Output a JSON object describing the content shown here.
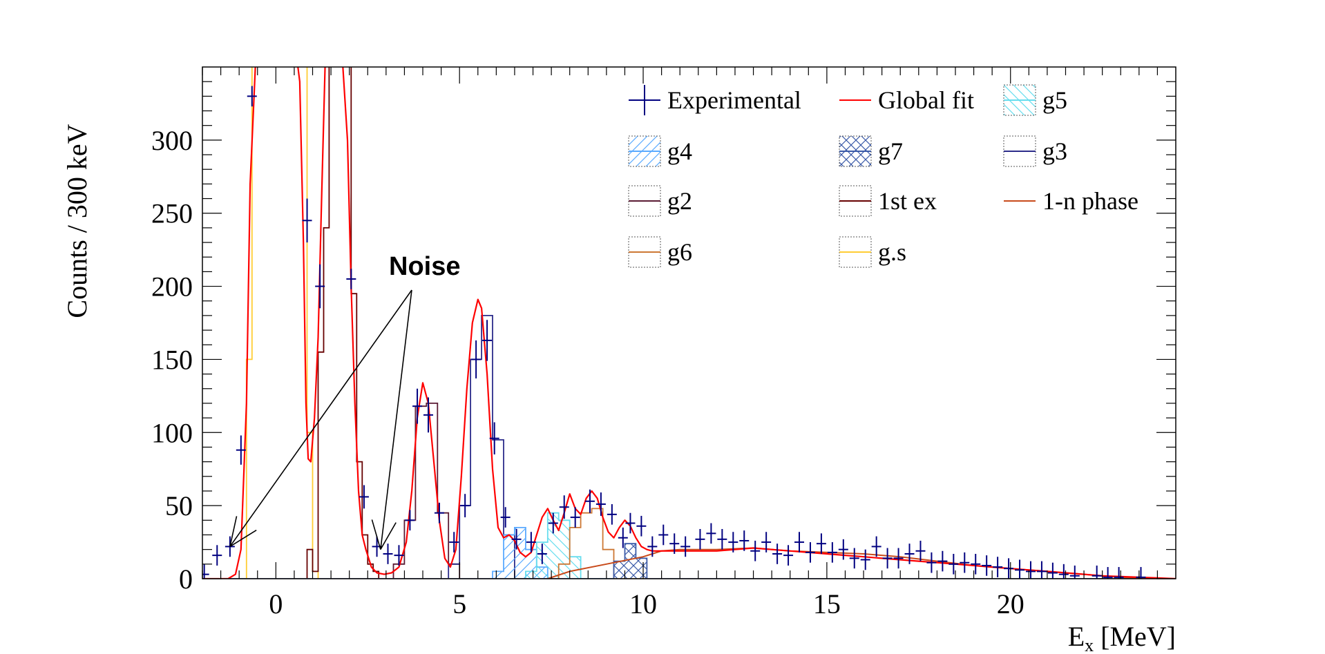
{
  "chart_data": {
    "type": "histogram",
    "title": "",
    "xlabel": "E",
    "xlabel_sub": "x",
    "xlabel_unit": " [MeV]",
    "ylabel": "Counts / 300 keV",
    "xlim": [
      -2,
      24.5
    ],
    "ylim": [
      0,
      350
    ],
    "bin_width_mev": 0.3,
    "xticks": [
      0,
      5,
      10,
      15,
      20
    ],
    "yticks": [
      0,
      50,
      100,
      150,
      200,
      250,
      300
    ],
    "grid": false,
    "legend_position": "top-right",
    "annotation": {
      "text": "Noise",
      "points_to_x": [
        -1.25,
        2.85
      ],
      "points_to_y": [
        22,
        20
      ]
    },
    "experimental": {
      "name": "Experimental",
      "color": "#000080",
      "points": [
        [
          -1.95,
          3,
          0
        ],
        [
          -1.6,
          16,
          5
        ],
        [
          -1.25,
          22,
          6
        ],
        [
          -0.95,
          88,
          10
        ],
        [
          -0.65,
          330,
          0
        ],
        [
          0.85,
          245,
          15
        ],
        [
          1.2,
          200,
          15
        ],
        [
          2.05,
          205,
          0
        ],
        [
          2.4,
          56,
          8
        ],
        [
          2.75,
          22,
          6
        ],
        [
          3.05,
          17,
          5
        ],
        [
          3.35,
          16,
          5
        ],
        [
          3.65,
          40,
          7
        ],
        [
          3.85,
          118,
          12
        ],
        [
          4.15,
          112,
          12
        ],
        [
          4.45,
          45,
          7
        ],
        [
          4.85,
          25,
          6
        ],
        [
          5.15,
          50,
          8
        ],
        [
          5.45,
          150,
          13
        ],
        [
          5.75,
          163,
          14
        ],
        [
          5.95,
          96,
          11
        ],
        [
          6.25,
          42,
          7
        ],
        [
          6.55,
          27,
          6
        ],
        [
          6.95,
          25,
          6
        ],
        [
          7.25,
          17,
          5
        ],
        [
          7.55,
          38,
          7
        ],
        [
          7.85,
          49,
          8
        ],
        [
          8.15,
          42,
          7
        ],
        [
          8.55,
          53,
          8
        ],
        [
          8.85,
          51,
          8
        ],
        [
          9.15,
          44,
          7
        ],
        [
          9.45,
          28,
          6
        ],
        [
          9.65,
          38,
          7
        ],
        [
          9.95,
          36,
          7
        ],
        [
          10.25,
          22,
          5
        ],
        [
          10.55,
          30,
          6
        ],
        [
          10.85,
          24,
          5
        ],
        [
          11.15,
          22,
          5
        ],
        [
          11.55,
          27,
          6
        ],
        [
          11.85,
          31,
          6
        ],
        [
          12.15,
          27,
          6
        ],
        [
          12.45,
          25,
          5
        ],
        [
          12.75,
          26,
          6
        ],
        [
          13.05,
          19,
          5
        ],
        [
          13.35,
          25,
          5
        ],
        [
          13.65,
          17,
          5
        ],
        [
          13.95,
          16,
          4
        ],
        [
          14.25,
          25,
          5
        ],
        [
          14.55,
          18,
          5
        ],
        [
          14.85,
          24,
          5
        ],
        [
          15.15,
          18,
          5
        ],
        [
          15.45,
          20,
          5
        ],
        [
          15.75,
          14,
          4
        ],
        [
          16.05,
          13,
          4
        ],
        [
          16.35,
          22,
          5
        ],
        [
          16.65,
          14,
          4
        ],
        [
          16.95,
          14,
          4
        ],
        [
          17.25,
          17,
          5
        ],
        [
          17.55,
          19,
          5
        ],
        [
          17.85,
          11,
          4
        ],
        [
          18.15,
          12,
          4
        ],
        [
          18.45,
          10,
          3
        ],
        [
          18.75,
          11,
          3
        ],
        [
          19.05,
          10,
          3
        ],
        [
          19.35,
          9,
          3
        ],
        [
          19.65,
          8,
          3
        ],
        [
          19.95,
          7,
          3
        ],
        [
          20.25,
          6,
          3
        ],
        [
          20.55,
          5,
          2
        ],
        [
          20.85,
          5,
          2
        ],
        [
          21.15,
          4,
          2
        ],
        [
          21.45,
          3,
          2
        ],
        [
          21.75,
          2,
          2
        ],
        [
          22.35,
          2,
          1
        ],
        [
          22.65,
          1,
          1
        ],
        [
          22.95,
          1,
          1
        ],
        [
          23.55,
          1,
          1
        ]
      ]
    },
    "global_fit": {
      "name": "Global fit",
      "color": "#ff0000",
      "x": [
        -2,
        -1.6,
        -1.3,
        -1.1,
        -0.95,
        -0.8,
        -0.7,
        -0.55,
        -0.4,
        -0.2,
        0,
        0.2,
        0.4,
        0.55,
        0.65,
        0.75,
        0.82,
        0.88,
        0.95,
        1.05,
        1.15,
        1.25,
        1.35,
        1.5,
        1.65,
        1.8,
        1.95,
        2.05,
        2.15,
        2.25,
        2.35,
        2.45,
        2.6,
        2.75,
        2.95,
        3.15,
        3.35,
        3.55,
        3.7,
        3.85,
        4.0,
        4.15,
        4.3,
        4.45,
        4.6,
        4.75,
        4.9,
        5.05,
        5.2,
        5.35,
        5.5,
        5.6,
        5.75,
        5.9,
        6.05,
        6.2,
        6.35,
        6.5,
        6.65,
        6.8,
        6.95,
        7.1,
        7.25,
        7.4,
        7.55,
        7.7,
        7.85,
        8.0,
        8.15,
        8.3,
        8.45,
        8.6,
        8.75,
        8.9,
        9.05,
        9.2,
        9.35,
        9.5,
        9.65,
        9.8,
        9.95,
        10.1,
        10.25,
        10.4,
        10.6,
        11,
        11.5,
        12,
        12.5,
        13,
        13.5,
        14,
        14.5,
        15,
        15.5,
        16,
        16.5,
        17,
        17.5,
        18,
        18.5,
        19,
        19.5,
        20,
        20.5,
        21,
        21.5,
        22,
        22.5,
        23,
        23.5,
        24,
        24.5
      ],
      "y": [
        0,
        0,
        0,
        3,
        20,
        120,
        270,
        355,
        360,
        360,
        360,
        360,
        360,
        360,
        340,
        230,
        120,
        82,
        80,
        110,
        165,
        265,
        360,
        360,
        360,
        360,
        300,
        200,
        120,
        60,
        30,
        20,
        8,
        4,
        3,
        4,
        8,
        25,
        60,
        110,
        134,
        120,
        80,
        40,
        14,
        8,
        20,
        70,
        130,
        175,
        191,
        185,
        140,
        75,
        35,
        28,
        30,
        26,
        18,
        15,
        18,
        30,
        42,
        48,
        40,
        33,
        45,
        58,
        48,
        44,
        55,
        60,
        55,
        42,
        32,
        28,
        35,
        40,
        36,
        28,
        22,
        20,
        19,
        19,
        19,
        19,
        19,
        19,
        20,
        21,
        20,
        19,
        18,
        17,
        16,
        15,
        14,
        13,
        12,
        11,
        10,
        9,
        8,
        7,
        6,
        5,
        4,
        3,
        2,
        1.5,
        1,
        0.5,
        0
      ]
    },
    "components": [
      {
        "name": "g.s",
        "color": "#ffcc33",
        "style": "outline",
        "x_edges": [
          -0.8,
          -0.65,
          -0.5,
          -0.35,
          0.7,
          0.85,
          1.0,
          1.15
        ],
        "values": [
          150,
          360,
          360,
          360,
          360,
          100,
          5,
          0
        ],
        "x_start": -2,
        "x_end": 24.5
      },
      {
        "name": "1st ex",
        "color": "#660000",
        "style": "outline",
        "x_edges": [
          0.7,
          0.85,
          1.0,
          1.15,
          1.3,
          1.45,
          1.6,
          1.75,
          1.9,
          2.05,
          2.2,
          2.35,
          2.5,
          2.65,
          2.8
        ],
        "values": [
          0,
          20,
          5,
          155,
          240,
          360,
          360,
          360,
          360,
          195,
          80,
          30,
          10,
          5,
          0
        ],
        "x_start": -2,
        "x_end": 24.5
      },
      {
        "name": "g2",
        "color": "#5a1a33",
        "style": "outline",
        "x_edges": [
          2.9,
          3.2,
          3.5,
          3.8,
          4.1,
          4.4,
          4.7,
          5.0
        ],
        "values": [
          0,
          10,
          40,
          118,
          120,
          45,
          10,
          0
        ],
        "x_start": -2,
        "x_end": 24.5
      },
      {
        "name": "g3",
        "color": "#2b2b8a",
        "style": "outline",
        "x_edges": [
          4.4,
          4.7,
          5.0,
          5.3,
          5.6,
          5.9,
          6.2,
          6.5
        ],
        "values": [
          0,
          10,
          50,
          150,
          180,
          95,
          30,
          5
        ],
        "x_start": -2,
        "x_end": 24.5
      },
      {
        "name": "g4",
        "color": "#5aaaff",
        "style": "hatch-diag",
        "x_edges": [
          5.9,
          6.2,
          6.5,
          6.8,
          7.1,
          7.4
        ],
        "values": [
          5,
          30,
          35,
          20,
          8,
          0
        ],
        "x_start": -2,
        "x_end": 24.5
      },
      {
        "name": "g5",
        "color": "#66ddee",
        "style": "hatch-anti",
        "x_edges": [
          6.8,
          7.1,
          7.4,
          7.7,
          8.0,
          8.3
        ],
        "values": [
          5,
          25,
          45,
          40,
          15,
          0
        ],
        "x_start": -2,
        "x_end": 24.5
      },
      {
        "name": "g6",
        "color": "#cc7733",
        "style": "outline",
        "x_edges": [
          7.7,
          8.0,
          8.3,
          8.6,
          8.9,
          9.2
        ],
        "values": [
          10,
          35,
          45,
          48,
          20,
          0
        ],
        "x_start": -2,
        "x_end": 24.5
      },
      {
        "name": "g7",
        "color": "#3a5aa8",
        "style": "hatch-cross",
        "x_edges": [
          9.2,
          9.5,
          9.8,
          10.1
        ],
        "values": [
          12,
          24,
          14,
          0
        ],
        "x_start": -2,
        "x_end": 24.5
      },
      {
        "name": "1-n phase",
        "color": "#c84a1a",
        "style": "line",
        "x": [
          7.4,
          8.0,
          9.0,
          10.0,
          10.5,
          11,
          12,
          13,
          14,
          15,
          16,
          17,
          18,
          19,
          20,
          21,
          22,
          23,
          24.5
        ],
        "y": [
          0,
          5,
          10,
          15,
          19,
          20,
          20,
          21,
          19,
          18,
          17,
          15,
          12,
          9,
          7,
          5,
          3,
          1,
          0
        ]
      }
    ],
    "legend": [
      {
        "label": "Experimental",
        "kind": "errorbar",
        "color": "#000080"
      },
      {
        "label": "Global fit",
        "kind": "line",
        "color": "#ff0000"
      },
      {
        "label": "g5",
        "kind": "hatch-anti",
        "color": "#66ddee"
      },
      {
        "label": "g4",
        "kind": "hatch-diag",
        "color": "#5aaaff"
      },
      {
        "label": "g7",
        "kind": "hatch-cross",
        "color": "#3a5aa8"
      },
      {
        "label": "g3",
        "kind": "box",
        "color": "#2b2b8a"
      },
      {
        "label": "g2",
        "kind": "box",
        "color": "#5a1a33"
      },
      {
        "label": "1st ex",
        "kind": "box",
        "color": "#660000"
      },
      {
        "label": "1-n phase",
        "kind": "line",
        "color": "#c84a1a"
      },
      {
        "label": "g6",
        "kind": "box",
        "color": "#cc7733"
      },
      {
        "label": "g.s",
        "kind": "box",
        "color": "#ffcc33"
      }
    ]
  }
}
